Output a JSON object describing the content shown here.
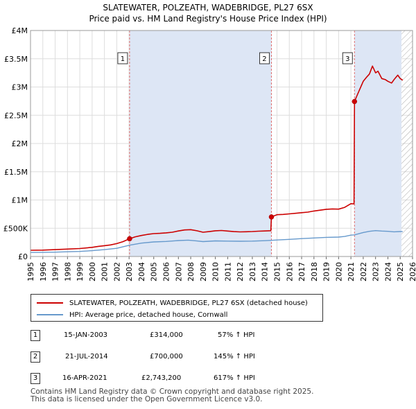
{
  "title_line1": "SLATEWATER, POLZEATH, WADEBRIDGE, PL27 6SX",
  "title_line2": "Price paid vs. HM Land Registry's House Price Index (HPI)",
  "colors": {
    "property": "#cc0000",
    "hpi": "#6699cc",
    "shade": "#dde6f5",
    "grid": "#dddddd",
    "vline": "#e07070"
  },
  "legend": {
    "property_label": "SLATEWATER, POLZEATH, WADEBRIDGE, PL27 6SX (detached house)",
    "hpi_label": "HPI: Average price, detached house, Cornwall"
  },
  "transactions": [
    {
      "num": "1",
      "date": "15-JAN-2003",
      "price": "£314,000",
      "hpi_change": "57% ↑ HPI"
    },
    {
      "num": "2",
      "date": "21-JUL-2014",
      "price": "£700,000",
      "hpi_change": "145% ↑ HPI"
    },
    {
      "num": "3",
      "date": "16-APR-2021",
      "price": "£2,743,200",
      "hpi_change": "617% ↑ HPI"
    }
  ],
  "footer_line1": "Contains HM Land Registry data © Crown copyright and database right 2025.",
  "footer_line2": "This data is licensed under the Open Government Licence v3.0.",
  "chart_data": {
    "type": "line",
    "xlim": [
      1995,
      2026
    ],
    "ylim": [
      0,
      4000000
    ],
    "yticks": [
      {
        "value": 0,
        "label": "£0"
      },
      {
        "value": 500000,
        "label": "£500K"
      },
      {
        "value": 1000000,
        "label": "£1M"
      },
      {
        "value": 1500000,
        "label": "£1.5M"
      },
      {
        "value": 2000000,
        "label": "£2M"
      },
      {
        "value": 2500000,
        "label": "£2.5M"
      },
      {
        "value": 3000000,
        "label": "£3M"
      },
      {
        "value": 3500000,
        "label": "£3.5M"
      },
      {
        "value": 4000000,
        "label": "£4M"
      }
    ],
    "xticks": [
      "1995",
      "1996",
      "1997",
      "1998",
      "1999",
      "2000",
      "2001",
      "2002",
      "2003",
      "2004",
      "2005",
      "2006",
      "2007",
      "2008",
      "2009",
      "2010",
      "2011",
      "2012",
      "2013",
      "2014",
      "2015",
      "2016",
      "2017",
      "2018",
      "2019",
      "2020",
      "2021",
      "2022",
      "2023",
      "2024",
      "2025",
      "2026"
    ],
    "shaded_ranges": [
      [
        2003.04,
        2014.55
      ],
      [
        2021.29,
        2025.1
      ]
    ],
    "hatched_range": [
      2025.1,
      2026
    ],
    "sales": [
      {
        "label": "1",
        "x": 2003.04,
        "y": 314000
      },
      {
        "label": "2",
        "x": 2014.55,
        "y": 700000
      },
      {
        "label": "3",
        "x": 2021.29,
        "y": 2743200
      }
    ],
    "series": [
      {
        "name": "SLATEWATER, POLZEATH, WADEBRIDGE, PL27 6SX (detached house)",
        "x": [
          1995,
          1996,
          1997,
          1998,
          1999,
          2000,
          2000.5,
          2001,
          2001.5,
          2002,
          2002.5,
          2003.04,
          2003.5,
          2004,
          2004.5,
          2005,
          2005.5,
          2006,
          2006.5,
          2007,
          2007.5,
          2008,
          2008.5,
          2009,
          2009.5,
          2010,
          2010.5,
          2011,
          2011.5,
          2012,
          2012.5,
          2013,
          2013.5,
          2014,
          2014.5,
          2014.55,
          2015,
          2015.5,
          2016,
          2016.5,
          2017,
          2017.5,
          2018,
          2018.5,
          2019,
          2019.5,
          2020,
          2020.5,
          2021,
          2021.25,
          2021.29,
          2021.5,
          2021.8,
          2022,
          2022.3,
          2022.5,
          2022.75,
          2023,
          2023.2,
          2023.5,
          2023.8,
          2024,
          2024.3,
          2024.5,
          2024.8,
          2025,
          2025.2
        ],
        "values": [
          111000,
          113000,
          121000,
          131000,
          141000,
          162000,
          179000,
          192000,
          205000,
          228000,
          262000,
          314000,
          348000,
          372000,
          392000,
          405000,
          410000,
          418000,
          430000,
          452000,
          470000,
          475000,
          455000,
          430000,
          440000,
          455000,
          460000,
          450000,
          440000,
          435000,
          438000,
          442000,
          448000,
          452000,
          456000,
          700000,
          740000,
          745000,
          755000,
          765000,
          775000,
          785000,
          805000,
          820000,
          835000,
          842000,
          838000,
          870000,
          935000,
          930000,
          2743200,
          2850000,
          3000000,
          3100000,
          3180000,
          3230000,
          3370000,
          3250000,
          3280000,
          3150000,
          3130000,
          3100000,
          3070000,
          3130000,
          3210000,
          3150000,
          3120000
        ]
      },
      {
        "name": "HPI: Average price, detached house, Cornwall",
        "x": [
          1995,
          1996,
          1997,
          1998,
          1999,
          2000,
          2001,
          2002,
          2003.04,
          2004,
          2005,
          2006,
          2007,
          2007.8,
          2008.5,
          2009,
          2010,
          2011,
          2012,
          2013,
          2014,
          2014.55,
          2015,
          2016,
          2017,
          2018,
          2019,
          2020,
          2020.5,
          2021,
          2021.29,
          2021.5,
          2022,
          2022.5,
          2023,
          2023.5,
          2024,
          2024.5,
          2025,
          2025.2
        ],
        "values": [
          71000,
          72000,
          77000,
          83000,
          90000,
          103000,
          122000,
          145000,
          200000,
          237000,
          258000,
          266000,
          282000,
          289000,
          275000,
          264000,
          276000,
          272000,
          270000,
          273000,
          280000,
          286000,
          292000,
          303000,
          317000,
          328000,
          339000,
          344000,
          355000,
          378000,
          383000,
          395000,
          425000,
          445000,
          458000,
          450000,
          445000,
          437000,
          442000,
          440000
        ]
      }
    ]
  }
}
